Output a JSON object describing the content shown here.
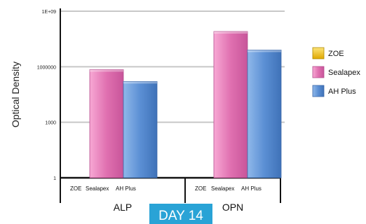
{
  "chart_data": {
    "type": "bar",
    "scale": "log",
    "ylabel": "Optical Density",
    "ylim": [
      1,
      1000000000
    ],
    "yticks": [
      {
        "value": 1,
        "label": "1"
      },
      {
        "value": 1000,
        "label": "1000"
      },
      {
        "value": 1000000,
        "label": "1000000"
      },
      {
        "value": 1000000000,
        "label": "1E+09"
      }
    ],
    "grid": true,
    "legend_position": "right",
    "groups": [
      {
        "label": "ALP",
        "sub_labels": [
          "ZOE",
          "Sealapex",
          "AH Plus"
        ]
      },
      {
        "label": "OPN",
        "sub_labels": [
          "ZOE",
          "Sealapex",
          "AH Plus"
        ]
      }
    ],
    "series": [
      {
        "name": "ZOE",
        "color": "#f2c618",
        "values": [
          null,
          null
        ]
      },
      {
        "name": "Sealapex",
        "color": "#e070b0",
        "values": [
          700000,
          80000000
        ]
      },
      {
        "name": "AH Plus",
        "color": "#5b8fd4",
        "values": [
          160000,
          8000000
        ]
      }
    ],
    "footer": "DAY 14"
  }
}
